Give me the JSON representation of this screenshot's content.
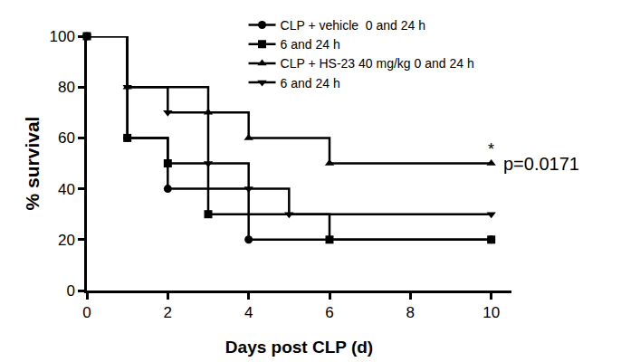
{
  "chart_data": {
    "type": "line",
    "line_style": "step",
    "x_label": "Days post CLP (d)",
    "y_label": "% survival",
    "xlim": [
      0,
      10.5
    ],
    "xticks": [
      0,
      2,
      4,
      6,
      8,
      10
    ],
    "ylim": [
      0,
      100
    ],
    "yticks": [
      0,
      20,
      40,
      60,
      80,
      100
    ],
    "grid": false,
    "legend": "top",
    "series": [
      {
        "name": "CLP + vehicle  0 and 24 h",
        "color": "#000000",
        "marker": "circle",
        "x": [
          0,
          1,
          2,
          4,
          10
        ],
        "values": [
          100,
          60,
          40,
          20,
          20
        ]
      },
      {
        "name": "6 and 24 h",
        "color": "#000000",
        "marker": "square",
        "x": [
          0,
          1,
          2,
          3,
          6,
          10
        ],
        "values": [
          100,
          60,
          50,
          30,
          20,
          20
        ]
      },
      {
        "name": "CLP + HS-23 40 mg/kg 0 and 24 h",
        "color": "#000000",
        "marker": "triangle-up",
        "x": [
          0,
          1,
          3,
          4,
          6,
          10
        ],
        "values": [
          100,
          80,
          70,
          60,
          50,
          50
        ]
      },
      {
        "name": "6 and 24 h",
        "color": "#000000",
        "marker": "triangle-down",
        "x": [
          0,
          1,
          2,
          3,
          4,
          5,
          10
        ],
        "values": [
          100,
          80,
          70,
          50,
          40,
          30,
          30
        ]
      }
    ],
    "annotations": [
      {
        "text": "*",
        "x": 10,
        "y": 50
      },
      {
        "text": "p=0.0171",
        "x": 10.25,
        "y": 50
      }
    ]
  }
}
